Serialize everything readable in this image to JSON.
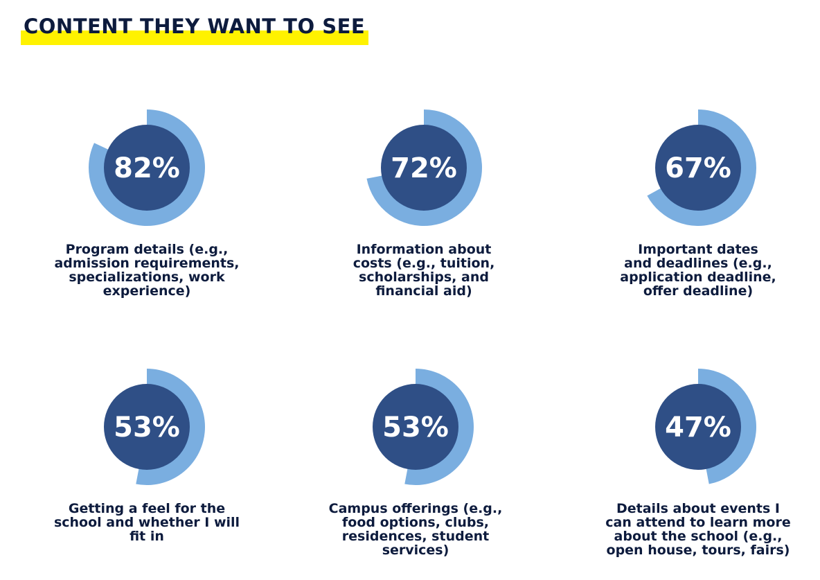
{
  "title": "CONTENT THEY WANT TO SEE",
  "colors": {
    "highlight": "#fff200",
    "inner_circle": "#2f4f86",
    "ring": "#7aaee0",
    "text": "#0d1b3d"
  },
  "chart_data": {
    "type": "pie",
    "items": [
      {
        "value": 82,
        "label": "82%",
        "description": "Program details (e.g.,\nadmission requirements,\nspecializations, work\nexperience)"
      },
      {
        "value": 72,
        "label": "72%",
        "description": "Information about\ncosts (e.g., tuition,\nscholarships, and\nfinancial aid)"
      },
      {
        "value": 67,
        "label": "67%",
        "description": "Important dates\nand deadlines (e.g.,\napplication deadline,\noffer deadline)"
      },
      {
        "value": 53,
        "label": "53%",
        "description": "Getting a feel for the\nschool and whether I will\nfit in"
      },
      {
        "value": 53,
        "label": "53%",
        "description": "Campus offerings (e.g.,\nfood options, clubs,\nresidences, student\nservices)"
      },
      {
        "value": 47,
        "label": "47%",
        "description": "Details about events I\ncan attend to learn more\nabout the school (e.g.,\nopen house, tours, fairs)"
      }
    ]
  }
}
